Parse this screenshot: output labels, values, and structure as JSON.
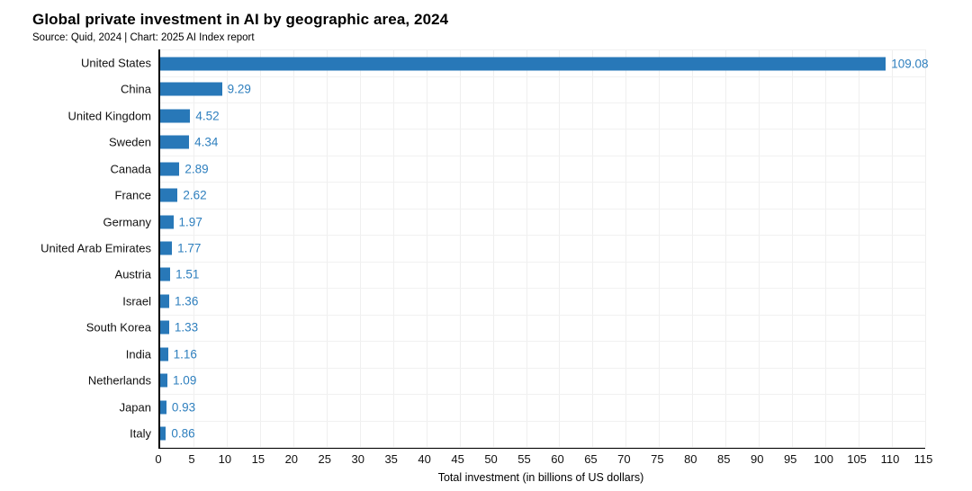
{
  "header": {
    "title": "Global private investment in AI by geographic area, 2024",
    "subtitle": "Source: Quid, 2024 | Chart: 2025 AI Index report"
  },
  "chart_data": {
    "type": "bar",
    "orientation": "horizontal",
    "title": "Global private investment in AI by geographic area, 2024",
    "subtitle": "Source: Quid, 2024 | Chart: 2025 AI Index report",
    "categories": [
      "United States",
      "China",
      "United Kingdom",
      "Sweden",
      "Canada",
      "France",
      "Germany",
      "United Arab Emirates",
      "Austria",
      "Israel",
      "South Korea",
      "India",
      "Netherlands",
      "Japan",
      "Italy"
    ],
    "values": [
      109.08,
      9.29,
      4.52,
      4.34,
      2.89,
      2.62,
      1.97,
      1.77,
      1.51,
      1.36,
      1.33,
      1.16,
      1.09,
      0.93,
      0.86
    ],
    "value_labels": [
      "109.08",
      "9.29",
      "4.52",
      "4.34",
      "2.89",
      "2.62",
      "1.97",
      "1.77",
      "1.51",
      "1.36",
      "1.33",
      "1.16",
      "1.09",
      "0.93",
      "0.86"
    ],
    "xlabel": "Total investment (in billions of US dollars)",
    "ylabel": "",
    "xlim": [
      0,
      115
    ],
    "xticks": [
      0,
      5,
      10,
      15,
      20,
      25,
      30,
      35,
      40,
      45,
      50,
      55,
      60,
      65,
      70,
      75,
      80,
      85,
      90,
      95,
      100,
      105,
      110,
      115
    ],
    "grid": true,
    "legend": "none",
    "colors": {
      "bar": "#2878b8",
      "value_label": "#2e7fbe",
      "axis": "#000000",
      "gridline": "#efefef"
    }
  }
}
